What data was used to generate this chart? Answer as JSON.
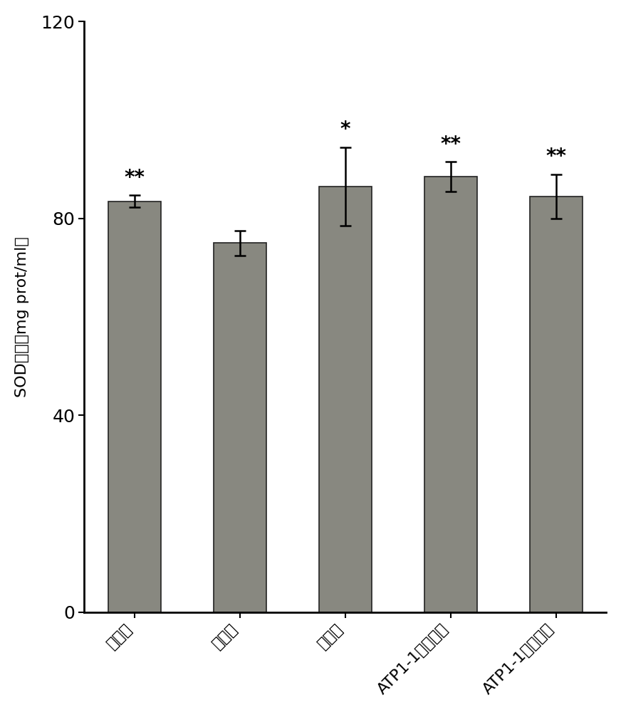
{
  "categories": [
    "正常组",
    "模型组",
    "阳性组",
    "ATP1-1高剂量组",
    "ATP1-1低剂量组"
  ],
  "values": [
    83.5,
    75.0,
    86.5,
    88.5,
    84.5
  ],
  "errors": [
    1.2,
    2.5,
    8.0,
    3.0,
    4.5
  ],
  "significance": [
    "**",
    "",
    "*",
    "**",
    "**"
  ],
  "bar_color": "#888880",
  "bar_edgecolor": "#222222",
  "ylabel_cn": "SOD活力（mg prot/ml）",
  "ylim": [
    0,
    120
  ],
  "yticks": [
    0,
    40,
    80,
    120
  ],
  "background_color": "#ffffff",
  "bar_width": 0.5,
  "figsize": [
    8.72,
    10.0
  ],
  "dpi": 100
}
